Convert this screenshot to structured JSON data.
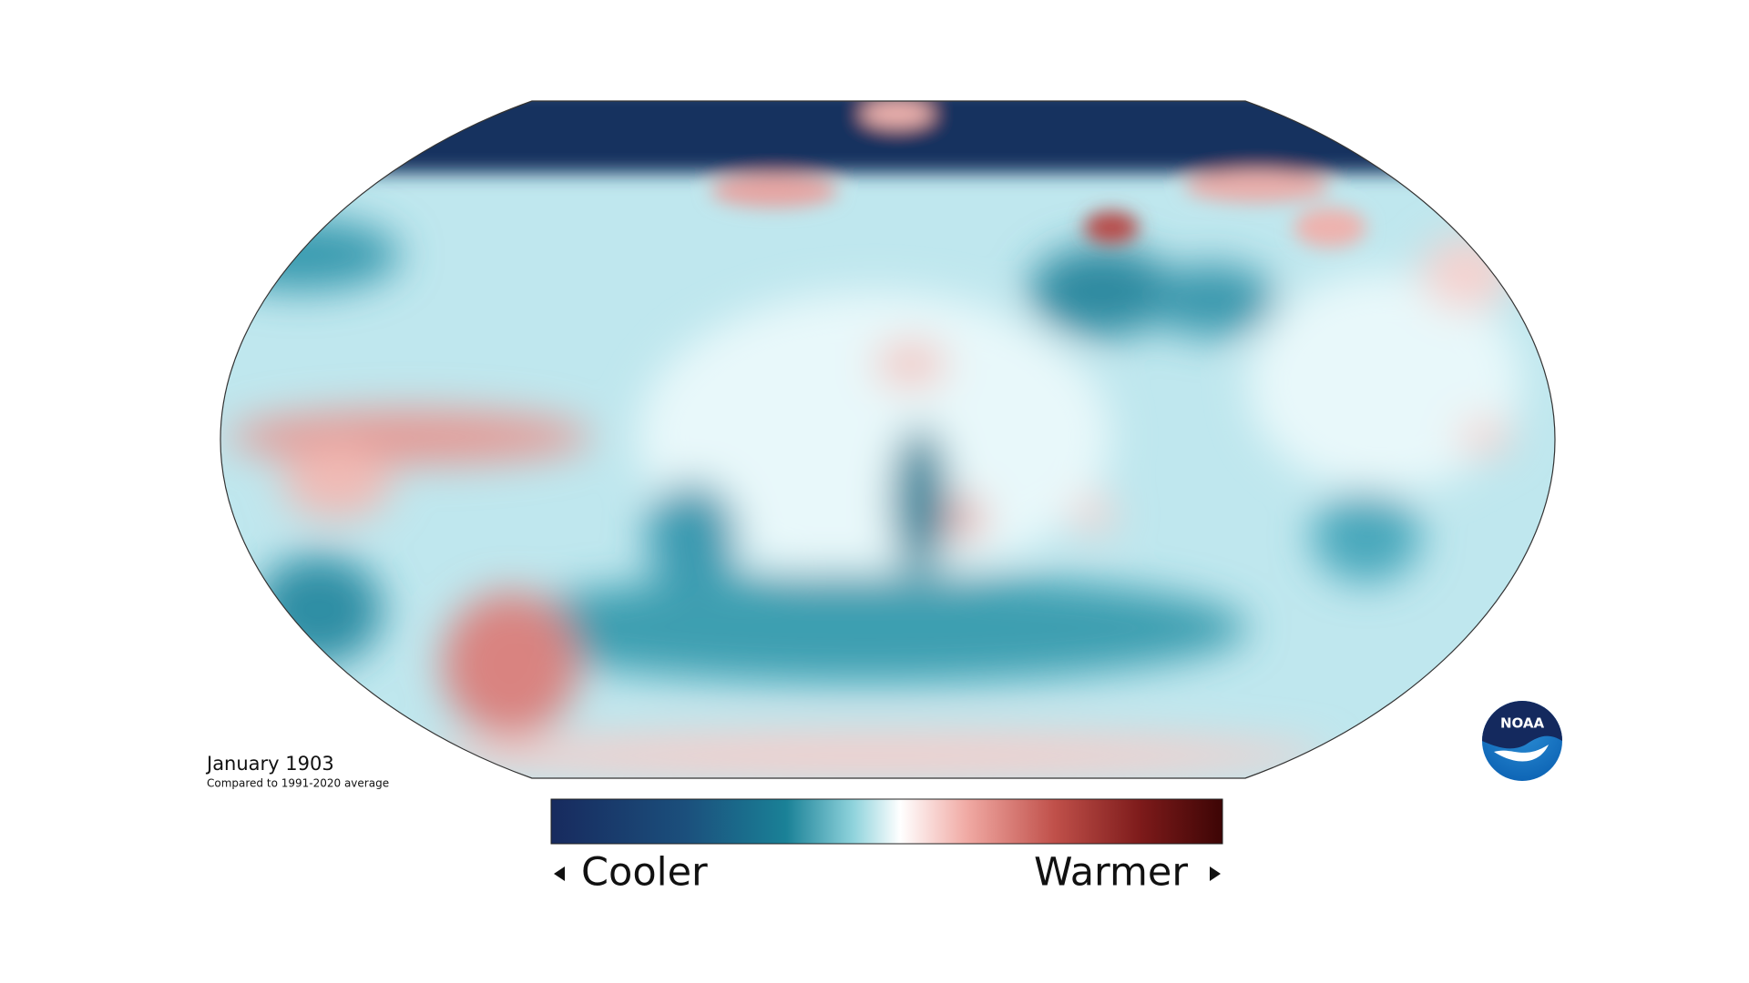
{
  "map": {
    "title": "January 1903",
    "subtitle": "Compared to 1991-2020 average"
  },
  "legend": {
    "low_label": "Cooler",
    "high_label": "Warmer"
  },
  "logo": {
    "text": "NOAA"
  }
}
